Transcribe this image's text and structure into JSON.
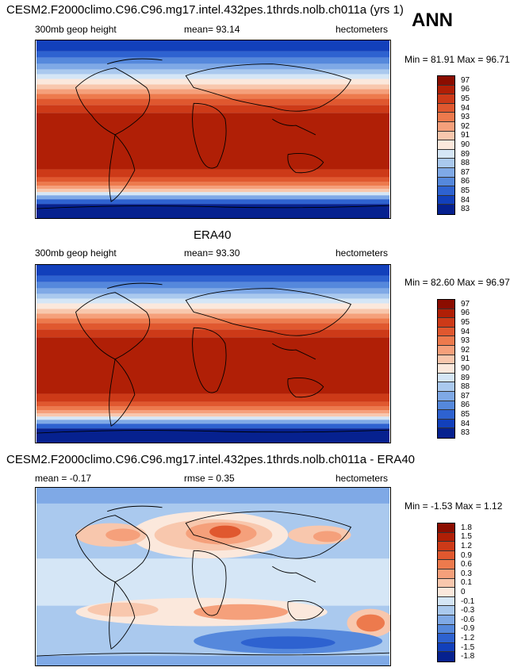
{
  "header": {
    "case_title": "CESM2.F2000climo.C96.C96.mg17.intel.432pes.1thrds.nolb.ch011a (yrs 1)",
    "season": "ANN"
  },
  "panels": [
    {
      "title": "",
      "variable": "300mb geop height",
      "mean_text": "mean=  93.14",
      "units": "hectometers",
      "minmax_text": "Min =  81.91 Max =  96.71",
      "colorbar_labels": [
        "97",
        "96",
        "95",
        "94",
        "93",
        "92",
        "91",
        "90",
        "89",
        "88",
        "87",
        "86",
        "85",
        "84",
        "83"
      ],
      "colorbar_colors": [
        "#8b0d00",
        "#b01f06",
        "#cd3a18",
        "#e0582f",
        "#ed7a4d",
        "#f5a07b",
        "#f8c7ad",
        "#fbe8dc",
        "#d5e6f6",
        "#aac9ee",
        "#7fa9e6",
        "#5588dc",
        "#2e62d0",
        "#1240bb",
        "#06218f"
      ]
    },
    {
      "title": "ERA40",
      "variable": "300mb geop height",
      "mean_text": "mean=  93.30",
      "units": "hectometers",
      "minmax_text": "Min =  82.60 Max =  96.97",
      "colorbar_labels": [
        "97",
        "96",
        "95",
        "94",
        "93",
        "92",
        "91",
        "90",
        "89",
        "88",
        "87",
        "86",
        "85",
        "84",
        "83"
      ],
      "colorbar_colors": [
        "#8b0d00",
        "#b01f06",
        "#cd3a18",
        "#e0582f",
        "#ed7a4d",
        "#f5a07b",
        "#f8c7ad",
        "#fbe8dc",
        "#d5e6f6",
        "#aac9ee",
        "#7fa9e6",
        "#5588dc",
        "#2e62d0",
        "#1240bb",
        "#06218f"
      ]
    },
    {
      "title": "CESM2.F2000climo.C96.C96.mg17.intel.432pes.1thrds.nolb.ch011a - ERA40",
      "variable": "mean =  -0.17",
      "mean_text": "rmse =   0.35",
      "units": "hectometers",
      "minmax_text": "Min =  -1.53 Max =   1.12",
      "colorbar_labels": [
        "1.8",
        "1.5",
        "1.2",
        "0.9",
        "0.6",
        "0.3",
        "0.1",
        "0",
        "-0.1",
        "-0.3",
        "-0.6",
        "-0.9",
        "-1.2",
        "-1.5",
        "-1.8"
      ],
      "colorbar_colors": [
        "#8b0d00",
        "#b01f06",
        "#cd3a18",
        "#e0582f",
        "#ed7a4d",
        "#f5a07b",
        "#f8c7ad",
        "#fbe8dc",
        "#d5e6f6",
        "#aac9ee",
        "#7fa9e6",
        "#5588dc",
        "#2e62d0",
        "#1240bb",
        "#06218f"
      ]
    }
  ]
}
